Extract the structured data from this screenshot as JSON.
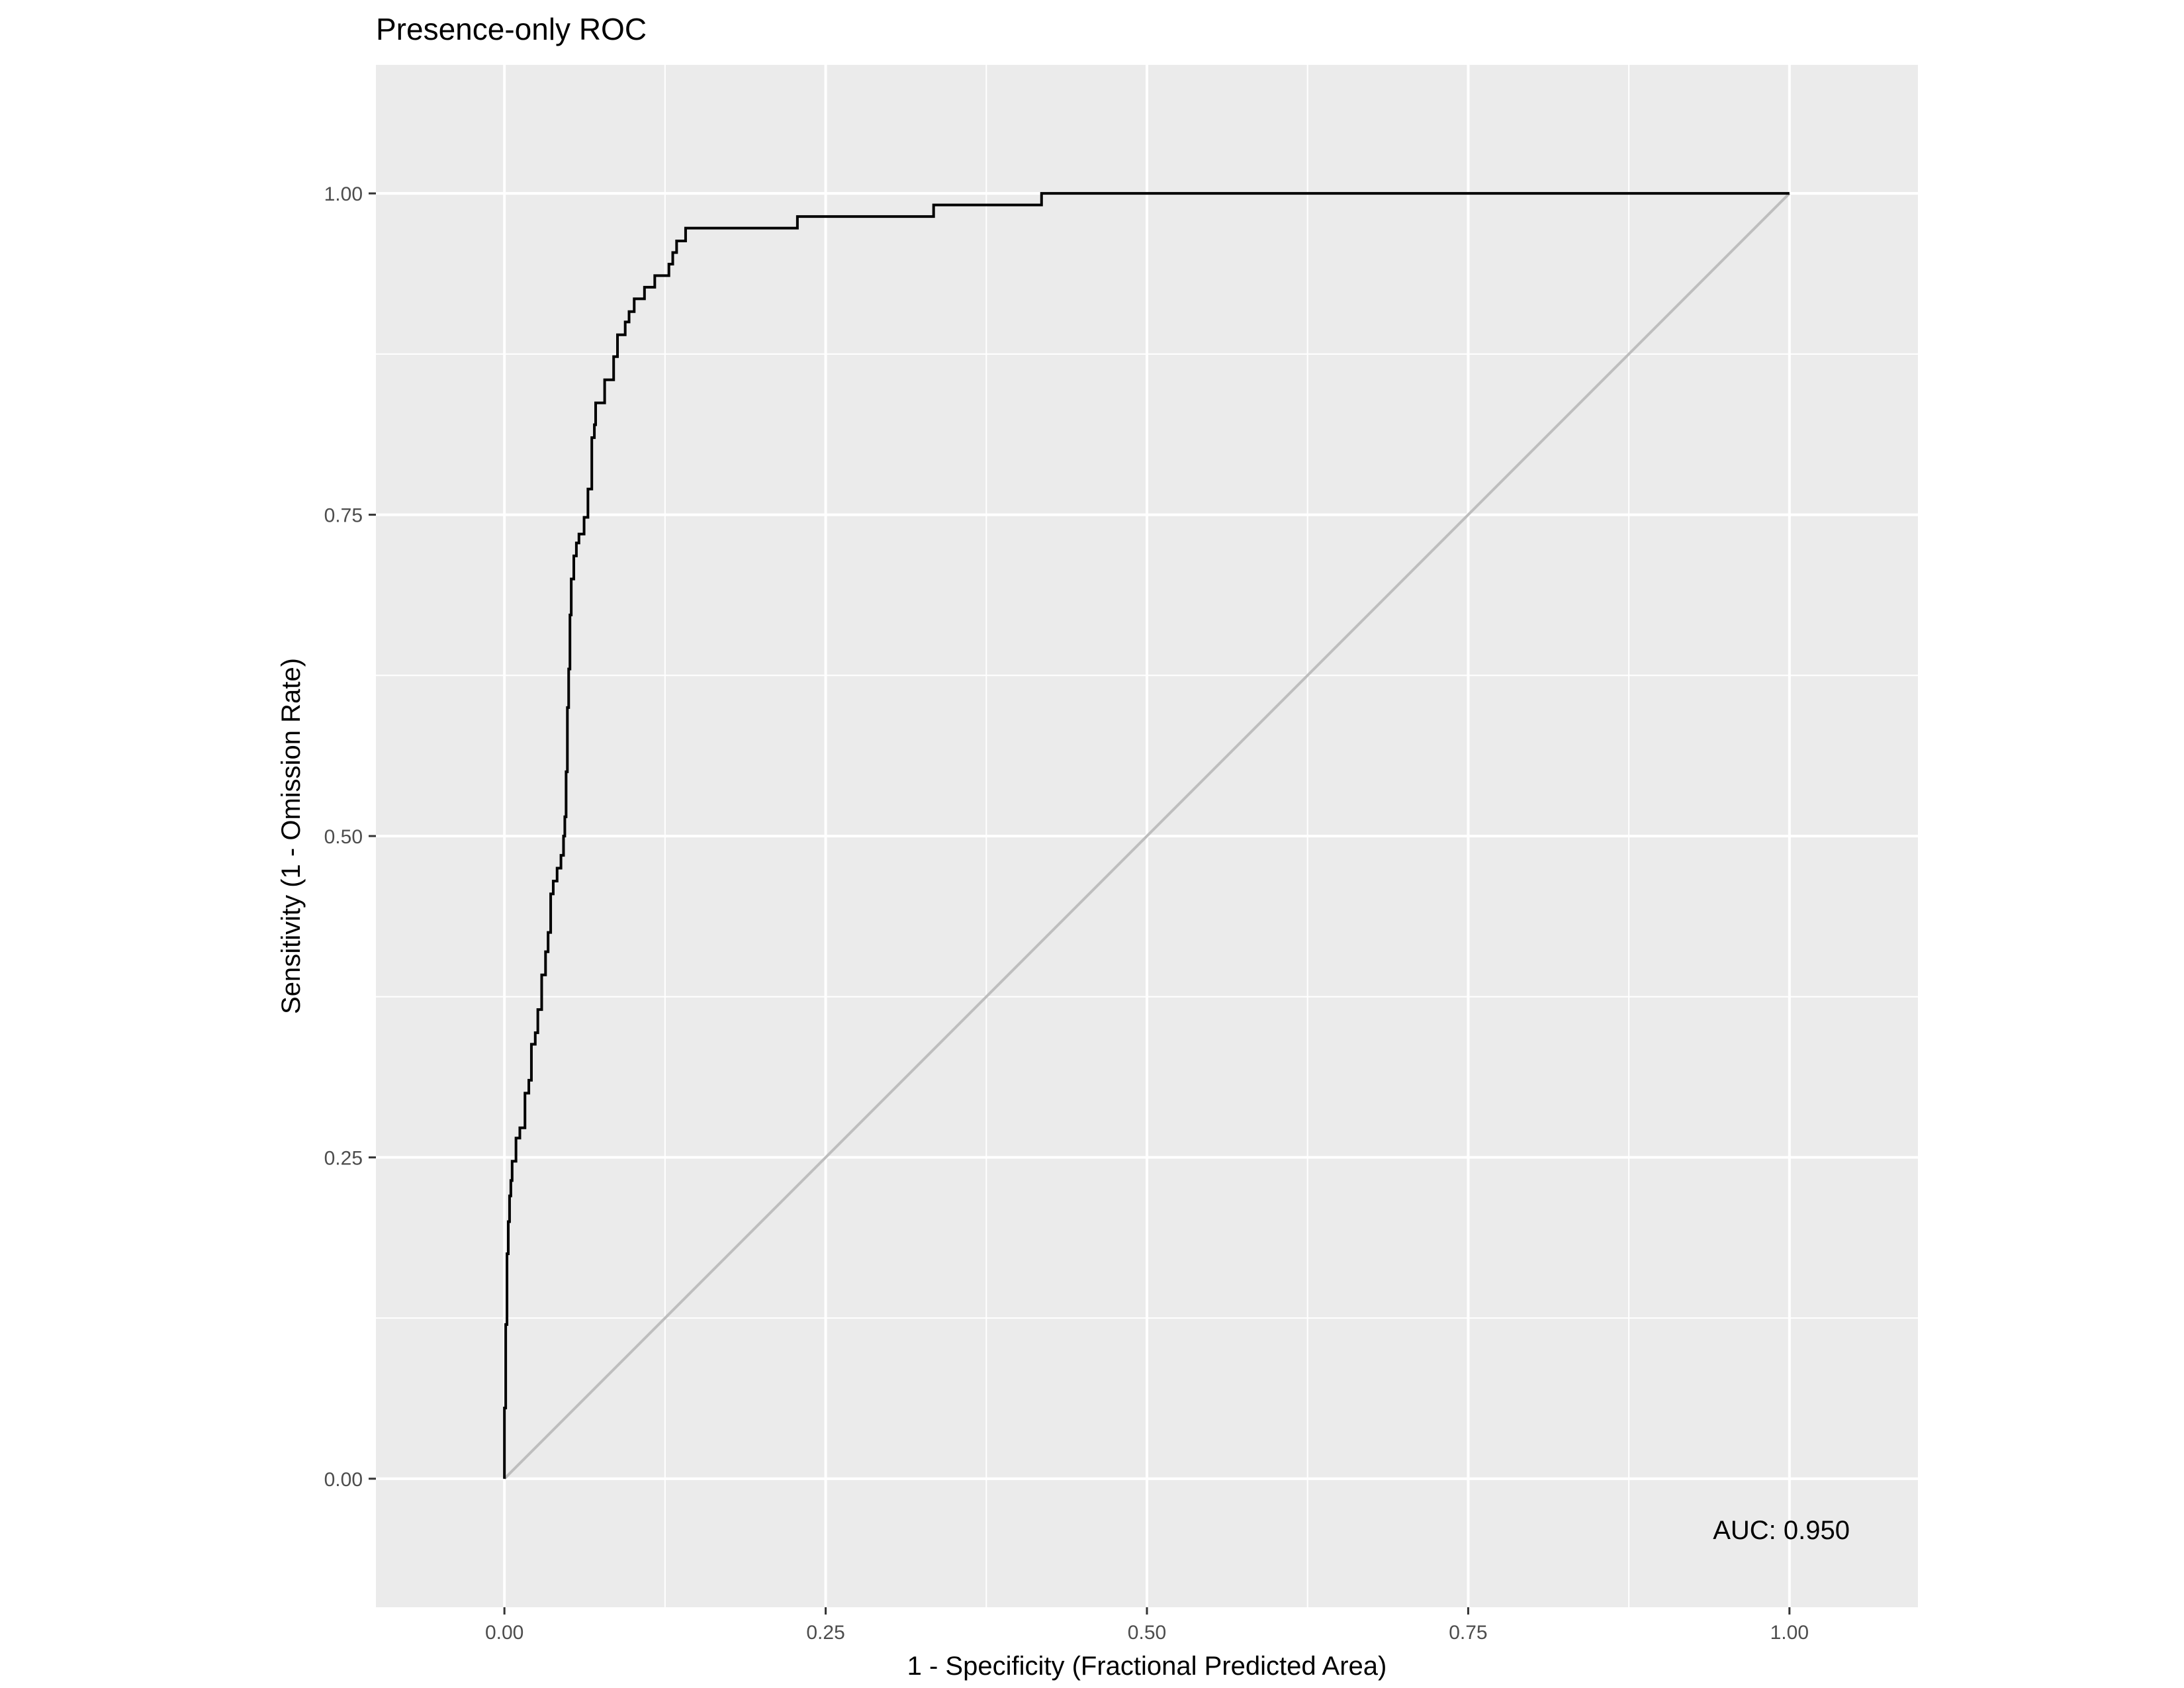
{
  "chart_data": {
    "type": "line",
    "title": "Presence-only ROC",
    "xlabel": "1 - Specificity (Fractional Predicted Area)",
    "ylabel": "Sensitivity (1 - Omission Rate)",
    "xlim": [
      -0.1,
      1.1
    ],
    "ylim": [
      -0.1,
      1.1
    ],
    "x_ticks": [
      0.0,
      0.25,
      0.5,
      0.75,
      1.0
    ],
    "x_tick_labels": [
      "0.00",
      "0.25",
      "0.50",
      "0.75",
      "1.00"
    ],
    "y_ticks": [
      0.0,
      0.25,
      0.5,
      0.75,
      1.0
    ],
    "y_tick_labels": [
      "0.00",
      "0.25",
      "0.50",
      "0.75",
      "1.00"
    ],
    "grid": true,
    "legend": "none",
    "annotation": "AUC: 0.950",
    "colors": {
      "panel_background": "#ebebeb",
      "grid": "#ffffff",
      "curve": "#000000",
      "reference_line": "#bebebe"
    },
    "series": [
      {
        "x": [
          0.0,
          0.0,
          0.001,
          0.001,
          0.002,
          0.002,
          0.003,
          0.003,
          0.004,
          0.004,
          0.005,
          0.005,
          0.006,
          0.006,
          0.009,
          0.009,
          0.012,
          0.012,
          0.016,
          0.016,
          0.019,
          0.019,
          0.021,
          0.021,
          0.024,
          0.024,
          0.026,
          0.026,
          0.029,
          0.029,
          0.032,
          0.032,
          0.034,
          0.034,
          0.036,
          0.036,
          0.038,
          0.038,
          0.041,
          0.041,
          0.044,
          0.044,
          0.046,
          0.046,
          0.047,
          0.047,
          0.048,
          0.048,
          0.049,
          0.049,
          0.05,
          0.05,
          0.051,
          0.051,
          0.052,
          0.052,
          0.054,
          0.054,
          0.056,
          0.056,
          0.058,
          0.058,
          0.062,
          0.062,
          0.065,
          0.065,
          0.068,
          0.068,
          0.07,
          0.07,
          0.071,
          0.071,
          0.078,
          0.078,
          0.085,
          0.085,
          0.088,
          0.088,
          0.094,
          0.094,
          0.097,
          0.097,
          0.101,
          0.101,
          0.109,
          0.109,
          0.117,
          0.117,
          0.128,
          0.128,
          0.131,
          0.131,
          0.134,
          0.134,
          0.141,
          0.141,
          0.228,
          0.228,
          0.334,
          0.334,
          0.418,
          0.418,
          1.0
        ],
        "y": [
          0.0,
          0.055,
          0.055,
          0.12,
          0.12,
          0.175,
          0.175,
          0.2,
          0.2,
          0.22,
          0.22,
          0.232,
          0.232,
          0.247,
          0.247,
          0.265,
          0.265,
          0.273,
          0.273,
          0.3,
          0.3,
          0.31,
          0.31,
          0.338,
          0.338,
          0.347,
          0.347,
          0.365,
          0.365,
          0.392,
          0.392,
          0.41,
          0.41,
          0.425,
          0.425,
          0.455,
          0.455,
          0.465,
          0.465,
          0.475,
          0.475,
          0.485,
          0.485,
          0.5,
          0.5,
          0.515,
          0.515,
          0.55,
          0.55,
          0.6,
          0.6,
          0.63,
          0.63,
          0.672,
          0.672,
          0.7,
          0.7,
          0.718,
          0.718,
          0.728,
          0.728,
          0.735,
          0.735,
          0.748,
          0.748,
          0.77,
          0.77,
          0.81,
          0.81,
          0.82,
          0.82,
          0.837,
          0.837,
          0.855,
          0.855,
          0.873,
          0.873,
          0.89,
          0.89,
          0.9,
          0.9,
          0.908,
          0.908,
          0.918,
          0.918,
          0.927,
          0.927,
          0.936,
          0.936,
          0.945,
          0.945,
          0.954,
          0.954,
          0.963,
          0.963,
          0.973,
          0.973,
          0.982,
          0.982,
          0.991,
          0.991,
          1.0,
          1.0
        ]
      },
      {
        "x": [
          0.0,
          1.0
        ],
        "y": [
          0.0,
          1.0
        ]
      }
    ]
  }
}
